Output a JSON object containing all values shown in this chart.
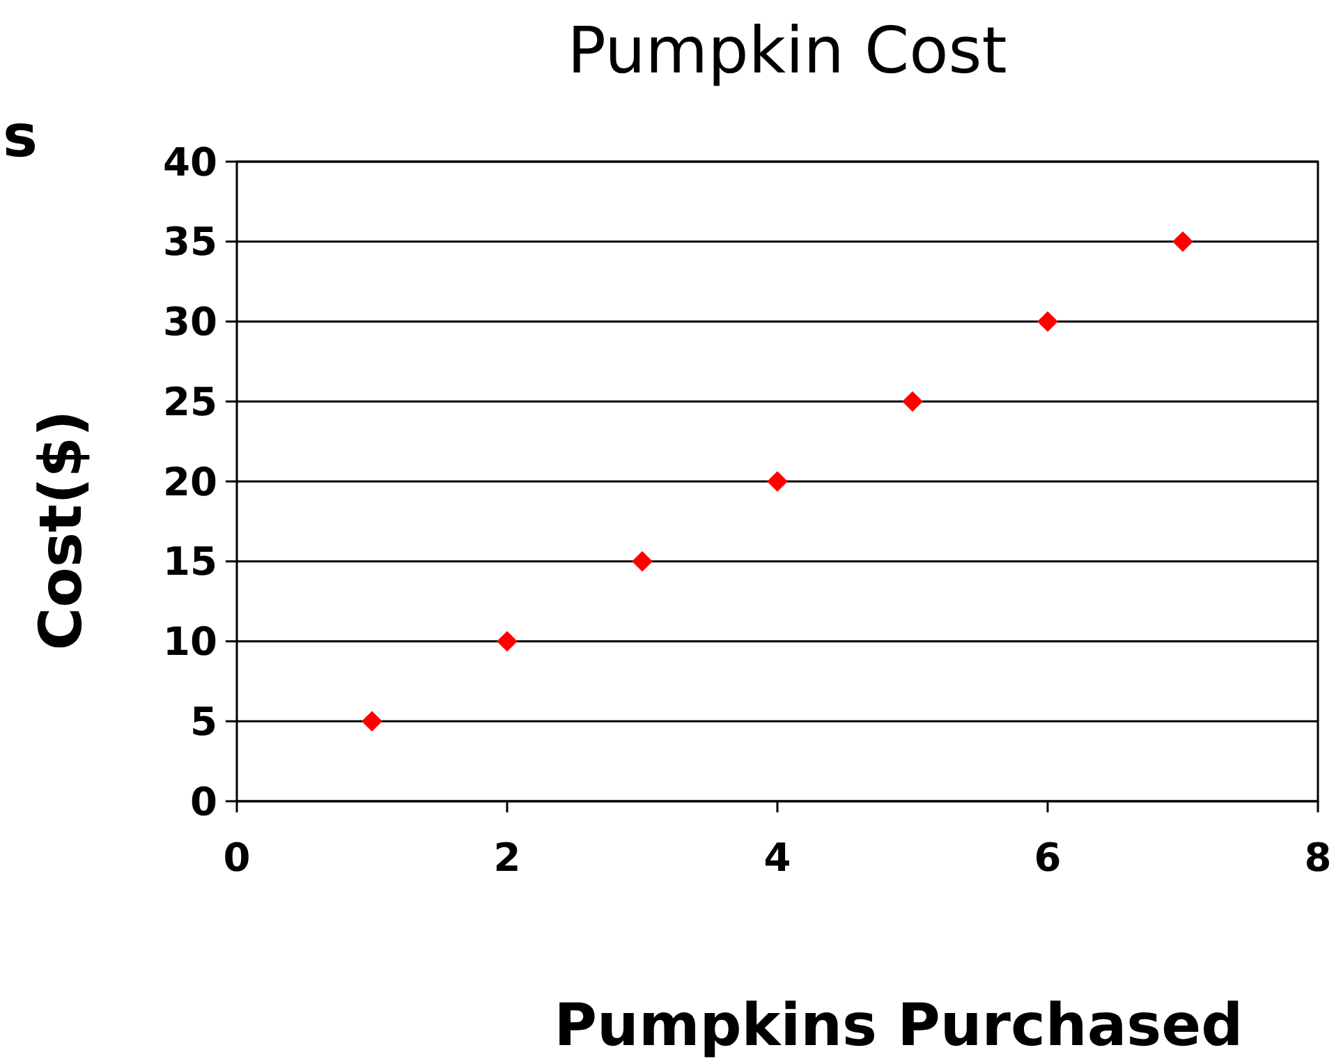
{
  "chart_data": {
    "type": "scatter",
    "title": "Pumpkin Cost",
    "xlabel": "Pumpkins Purchased",
    "ylabel": "Cost($)",
    "annotations": [
      "s"
    ],
    "x": [
      1,
      2,
      3,
      4,
      5,
      6,
      7
    ],
    "series": [
      {
        "color": "#ff0000",
        "values": [
          5,
          10,
          15,
          20,
          25,
          30,
          35
        ]
      }
    ],
    "xlim": [
      0,
      8
    ],
    "xticks": [
      0,
      2,
      4,
      6,
      8
    ],
    "ylim": [
      0,
      40
    ],
    "yticks": [
      0,
      5,
      10,
      15,
      20,
      25,
      30,
      35,
      40
    ],
    "grid": "y",
    "marker": "diamond"
  }
}
